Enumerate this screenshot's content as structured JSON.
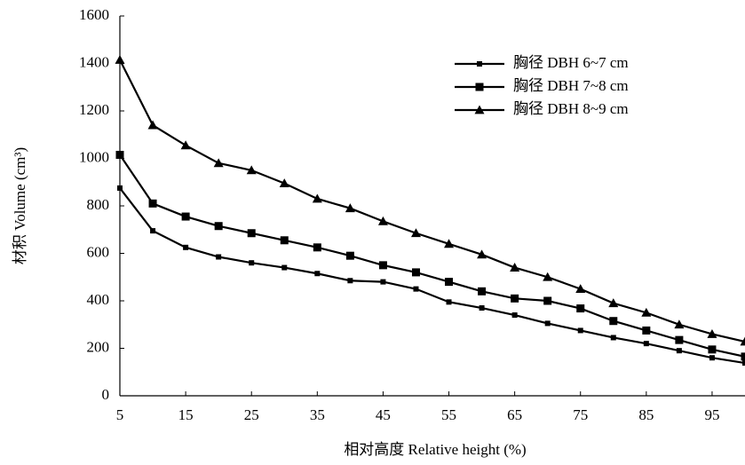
{
  "chart_data": {
    "type": "line",
    "x_label": "相对高度 Relative height (%)",
    "y_label": "材积 Volume (cm³)",
    "x": [
      5,
      10,
      15,
      20,
      25,
      30,
      35,
      40,
      45,
      50,
      55,
      60,
      65,
      70,
      75,
      80,
      85,
      90,
      95,
      100
    ],
    "series": [
      {
        "name": "胸径 DBH 6~7 cm",
        "color": "#000000",
        "marker": "small-square",
        "values": [
          875,
          695,
          625,
          585,
          560,
          540,
          515,
          485,
          480,
          450,
          395,
          370,
          340,
          305,
          275,
          245,
          220,
          190,
          160,
          138
        ]
      },
      {
        "name": "胸径 DBH 7~8 cm",
        "color": "#000000",
        "marker": "square",
        "values": [
          1015,
          810,
          755,
          715,
          685,
          655,
          625,
          590,
          550,
          520,
          480,
          440,
          410,
          400,
          368,
          315,
          275,
          235,
          195,
          165
        ]
      },
      {
        "name": "胸径 DBH 8~9 cm",
        "color": "#000000",
        "marker": "triangle",
        "values": [
          1415,
          1140,
          1055,
          980,
          950,
          895,
          830,
          790,
          735,
          685,
          640,
          595,
          540,
          500,
          450,
          390,
          350,
          300,
          260,
          228
        ]
      }
    ],
    "xlim": [
      5,
      100
    ],
    "xticks": [
      5,
      15,
      25,
      35,
      45,
      55,
      65,
      75,
      85,
      95
    ],
    "ylim": [
      0,
      1600
    ],
    "yticks": [
      0,
      200,
      400,
      600,
      800,
      1000,
      1200,
      1400,
      1600
    ],
    "grid": false,
    "legend": "upper right"
  }
}
